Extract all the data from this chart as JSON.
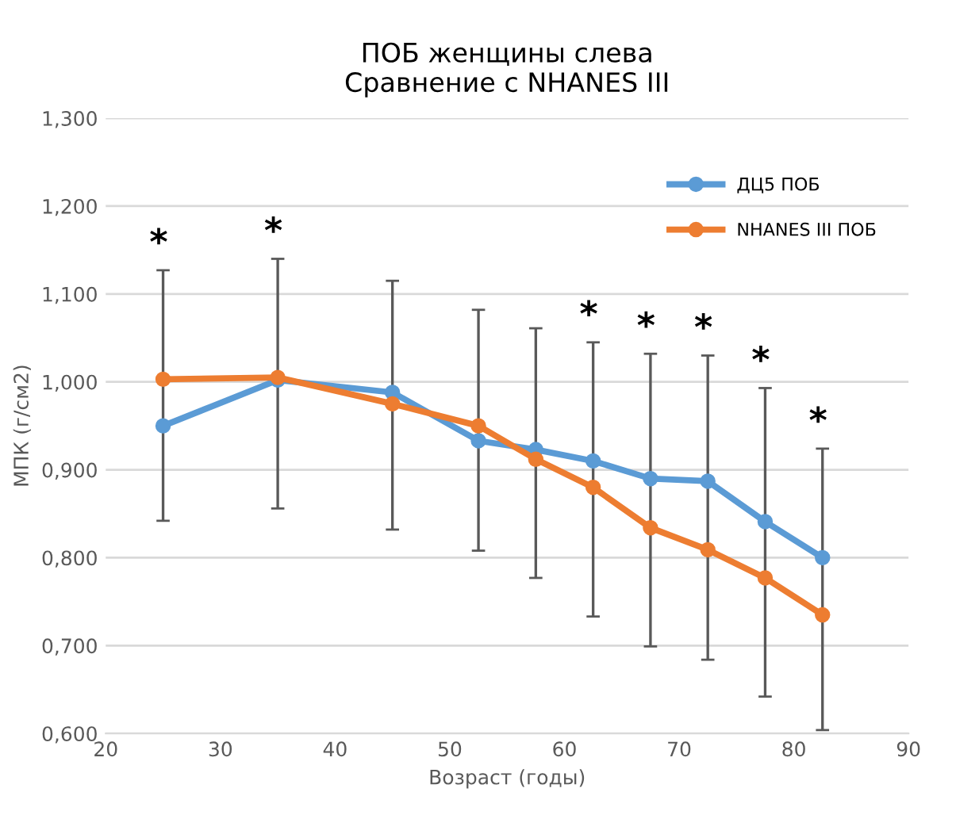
{
  "chart_data": {
    "type": "line",
    "title": "ПОБ женщины слева\nСравнение с NHANES III",
    "xlabel": "Возраст (годы)",
    "ylabel": "МПК (г/см2)",
    "x": [
      25,
      35,
      45,
      52.5,
      57.5,
      62.5,
      67.5,
      72.5,
      77.5,
      82.5
    ],
    "series": [
      {
        "name": "ДЦ5 ПОБ",
        "color": "#5b9bd5",
        "values": [
          0.95,
          1.002,
          0.988,
          0.933,
          0.923,
          0.91,
          0.89,
          0.887,
          0.841,
          0.8
        ]
      },
      {
        "name": "NHANES III ПОБ",
        "color": "#ed7d31",
        "values": [
          1.003,
          1.005,
          0.975,
          0.95,
          0.912,
          0.88,
          0.834,
          0.809,
          0.777,
          0.735
        ],
        "errors": [
          [
            0.842,
            1.127
          ],
          [
            0.856,
            1.14
          ],
          [
            0.832,
            1.115
          ],
          [
            0.808,
            1.082
          ],
          [
            0.777,
            1.061
          ],
          [
            0.733,
            1.045
          ],
          [
            0.699,
            1.032
          ],
          [
            0.684,
            1.03
          ],
          [
            0.642,
            0.993
          ],
          [
            0.604,
            0.924
          ]
        ]
      }
    ],
    "annotations": [
      {
        "text": "*",
        "x": 25,
        "y": 1.127
      },
      {
        "text": "*",
        "x": 35,
        "y": 1.14
      },
      {
        "text": "*",
        "x": 62.5,
        "y": 1.045
      },
      {
        "text": "*",
        "x": 67.5,
        "y": 1.032
      },
      {
        "text": "*",
        "x": 72.5,
        "y": 1.03
      },
      {
        "text": "*",
        "x": 77.5,
        "y": 0.993
      },
      {
        "text": "*",
        "x": 82.5,
        "y": 0.924
      }
    ],
    "xlim": [
      20,
      90
    ],
    "xticks": [
      20,
      30,
      40,
      50,
      60,
      70,
      80,
      90
    ],
    "ylim": [
      0.6,
      1.3
    ],
    "yticks": [
      {
        "value": 0.6,
        "label": "0,600"
      },
      {
        "value": 0.7,
        "label": "0,700"
      },
      {
        "value": 0.8,
        "label": "0,800"
      },
      {
        "value": 0.9,
        "label": "0,900"
      },
      {
        "value": 1.0,
        "label": "1,000"
      },
      {
        "value": 1.1,
        "label": "1,100"
      },
      {
        "value": 1.2,
        "label": "1,200"
      },
      {
        "value": 1.3,
        "label": "1,300"
      }
    ],
    "grid": "y",
    "legend": "top right",
    "marker": "circle",
    "line_style": "solid"
  }
}
